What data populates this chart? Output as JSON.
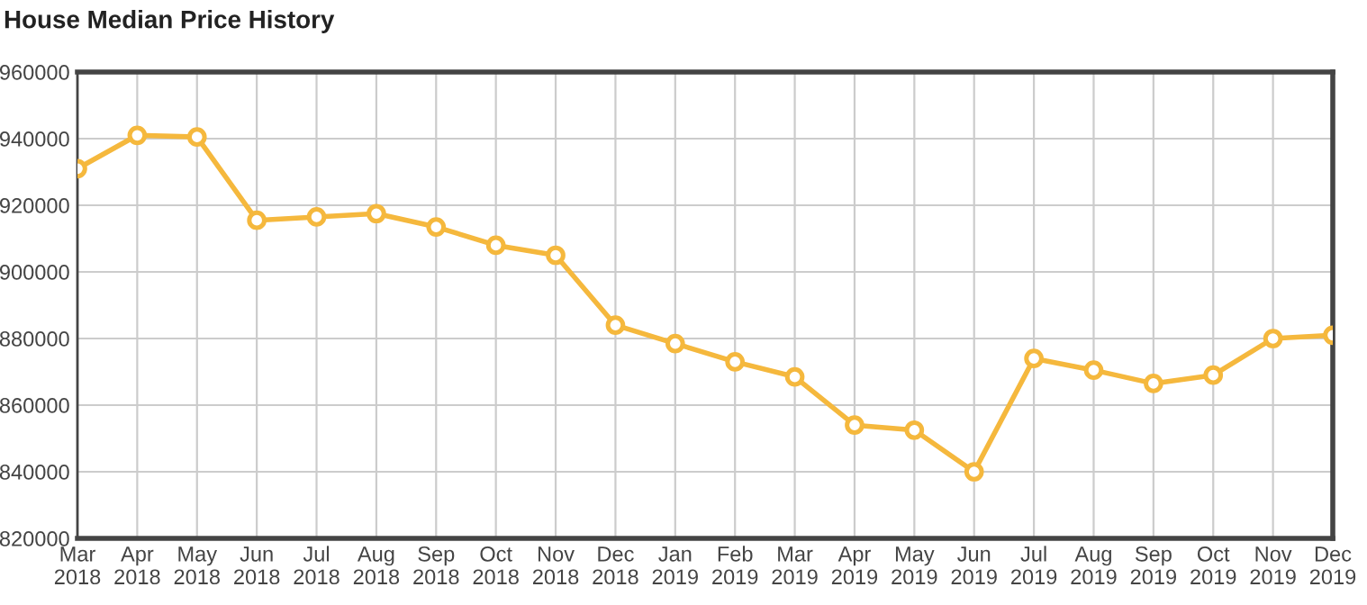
{
  "chart_data": {
    "type": "line",
    "title": "House Median Price History",
    "categories": [
      "Mar\n2018",
      "Apr\n2018",
      "May\n2018",
      "Jun\n2018",
      "Jul\n2018",
      "Aug\n2018",
      "Sep\n2018",
      "Oct\n2018",
      "Nov\n2018",
      "Dec\n2018",
      "Jan\n2019",
      "Feb\n2019",
      "Mar\n2019",
      "Apr\n2019",
      "May\n2019",
      "Jun\n2019",
      "Jul\n2019",
      "Aug\n2019",
      "Sep\n2019",
      "Oct\n2019",
      "Nov\n2019",
      "Dec\n2019"
    ],
    "series": [
      {
        "color": "#f5b83d",
        "values": [
          931000,
          941000,
          940500,
          915500,
          916500,
          917500,
          913500,
          908000,
          905000,
          884000,
          878500,
          873000,
          868500,
          854000,
          852500,
          840000,
          874000,
          870500,
          866500,
          869000,
          880000,
          881000
        ]
      }
    ],
    "ylim": [
      820000,
      960000
    ],
    "yticks": [
      820000,
      840000,
      860000,
      880000,
      900000,
      920000,
      940000,
      960000
    ],
    "grid": true,
    "marker": "circle",
    "line_style": "solid",
    "legend": false
  }
}
